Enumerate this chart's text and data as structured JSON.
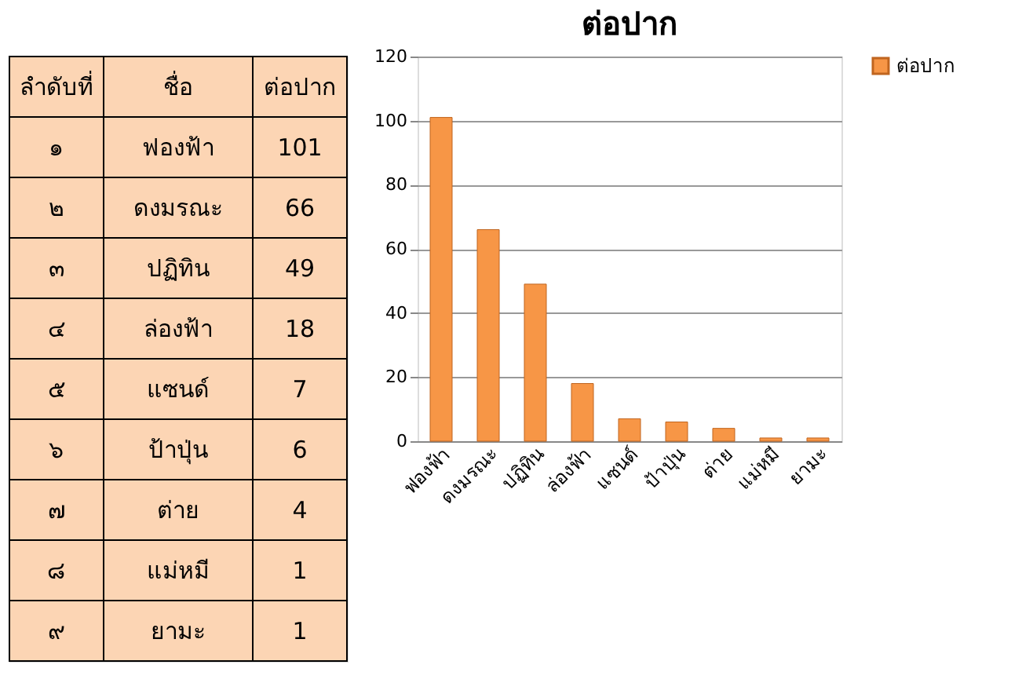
{
  "chart_data": {
    "type": "bar",
    "title": "ต่อปาก",
    "categories": [
      "ฟองฟ้า",
      "ดงมรณะ",
      "ปฏิทิน",
      "ล่องฟ้า",
      "แซนด์",
      "ป้าปุ่น",
      "ต่าย",
      "แม่หมี",
      "ยามะ"
    ],
    "series": [
      {
        "name": "ต่อปาก",
        "color": "#f79646",
        "values": [
          101,
          66,
          49,
          18,
          7,
          6,
          4,
          1,
          1
        ]
      }
    ],
    "ylim": [
      0,
      120
    ],
    "yticks": [
      0,
      20,
      40,
      60,
      80,
      100,
      120
    ],
    "grid": "y",
    "legend": "right",
    "annotations": [
      "ลำดับที่",
      "ชื่อ",
      "ต่อปาก",
      "๑",
      "๒",
      "๓",
      "๔",
      "๕",
      "๖",
      "๗",
      "๘",
      "๙",
      "101",
      "66",
      "49",
      "18",
      "7",
      "6",
      "4",
      "1",
      "1"
    ]
  }
}
